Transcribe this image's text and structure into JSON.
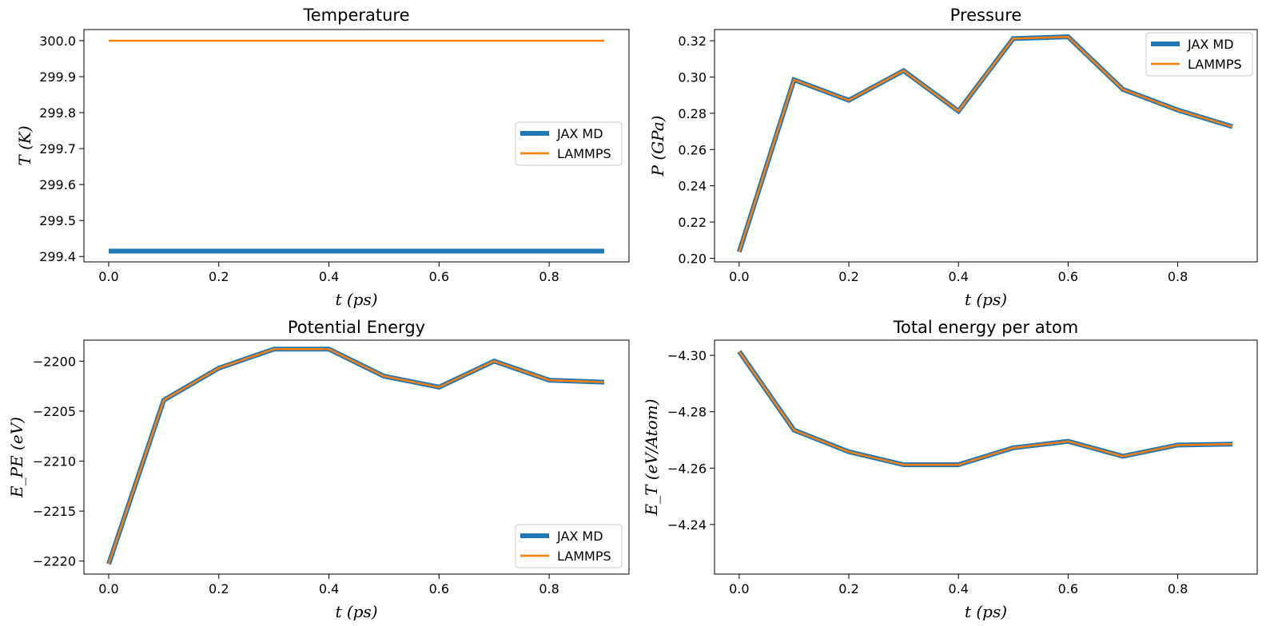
{
  "colors": {
    "jax": "#1f77b4",
    "lammps": "#ff7f0e",
    "legend_border": "#cccccc"
  },
  "chart_data": [
    {
      "type": "line",
      "title": "Temperature",
      "xlabel": "t (ps)",
      "ylabel": "T (K)",
      "x": [
        0.0,
        0.1,
        0.2,
        0.3,
        0.4,
        0.5,
        0.6,
        0.7,
        0.8,
        0.9
      ],
      "xlim": [
        -0.045,
        0.945
      ],
      "ylim": [
        299.385,
        300.031
      ],
      "xticks": [
        0.0,
        0.2,
        0.4,
        0.6,
        0.8
      ],
      "xtick_labels": [
        "0.0",
        "0.2",
        "0.4",
        "0.6",
        "0.8"
      ],
      "yticks": [
        299.4,
        299.5,
        299.6,
        299.7,
        299.8,
        299.9,
        300.0
      ],
      "ytick_labels": [
        "299.4",
        "299.5",
        "299.6",
        "299.7",
        "299.8",
        "299.9",
        "300.0"
      ],
      "legend_position": "center-right",
      "series": [
        {
          "name": "JAX MD",
          "values": [
            299.415,
            299.415,
            299.415,
            299.415,
            299.415,
            299.415,
            299.415,
            299.415,
            299.415,
            299.415
          ]
        },
        {
          "name": "LAMMPS",
          "values": [
            300.0,
            300.0,
            300.0,
            300.0,
            300.0,
            300.0,
            300.0,
            300.0,
            300.0,
            300.0
          ]
        }
      ]
    },
    {
      "type": "line",
      "title": "Pressure",
      "xlabel": "t (ps)",
      "ylabel": "P (GPa)",
      "x": [
        0.0,
        0.1,
        0.2,
        0.3,
        0.4,
        0.5,
        0.6,
        0.7,
        0.8,
        0.9
      ],
      "xlim": [
        -0.045,
        0.945
      ],
      "ylim": [
        0.198,
        0.3262
      ],
      "xticks": [
        0.0,
        0.2,
        0.4,
        0.6,
        0.8
      ],
      "xtick_labels": [
        "0.0",
        "0.2",
        "0.4",
        "0.6",
        "0.8"
      ],
      "yticks": [
        0.2,
        0.22,
        0.24,
        0.26,
        0.28,
        0.3,
        0.32
      ],
      "ytick_labels": [
        "0.20",
        "0.22",
        "0.24",
        "0.26",
        "0.28",
        "0.30",
        "0.32"
      ],
      "legend_position": "upper-right",
      "series": [
        {
          "name": "JAX MD",
          "values": [
            0.2035,
            0.2985,
            0.2872,
            0.3035,
            0.2812,
            0.3212,
            0.3222,
            0.2932,
            0.2818,
            0.2726
          ]
        },
        {
          "name": "LAMMPS",
          "values": [
            0.2035,
            0.2985,
            0.2872,
            0.3035,
            0.2812,
            0.3212,
            0.3222,
            0.2932,
            0.2818,
            0.2726
          ]
        }
      ]
    },
    {
      "type": "line",
      "title": "Potential Energy",
      "xlabel": "t (ps)",
      "ylabel": "E_PE (eV)",
      "x": [
        0.0,
        0.1,
        0.2,
        0.3,
        0.4,
        0.5,
        0.6,
        0.7,
        0.8,
        0.9
      ],
      "xlim": [
        -0.045,
        0.945
      ],
      "ylim": [
        -2221.3,
        -2197.9
      ],
      "xticks": [
        0.0,
        0.2,
        0.4,
        0.6,
        0.8
      ],
      "xtick_labels": [
        "0.0",
        "0.2",
        "0.4",
        "0.6",
        "0.8"
      ],
      "yticks": [
        -2220,
        -2215,
        -2210,
        -2205,
        -2200
      ],
      "ytick_labels": [
        "−2220",
        "−2215",
        "−2210",
        "−2205",
        "−2200"
      ],
      "legend_position": "lower-right",
      "series": [
        {
          "name": "JAX MD",
          "values": [
            -2220.3,
            -2203.9,
            -2200.7,
            -2198.8,
            -2198.8,
            -2201.5,
            -2202.6,
            -2200.0,
            -2201.9,
            -2202.1
          ]
        },
        {
          "name": "LAMMPS",
          "values": [
            -2220.3,
            -2203.9,
            -2200.7,
            -2198.8,
            -2198.8,
            -2201.5,
            -2202.6,
            -2200.0,
            -2201.9,
            -2202.1
          ]
        }
      ]
    },
    {
      "type": "line",
      "title": "Total energy per atom",
      "xlabel": "t (ps)",
      "ylabel": "E_T (eV/Atom)",
      "x": [
        0.0,
        0.1,
        0.2,
        0.3,
        0.4,
        0.5,
        0.6,
        0.7,
        0.8,
        0.9
      ],
      "xlim": [
        -0.045,
        0.945
      ],
      "ylim": [
        -4.2224,
        -4.3054
      ],
      "xticks": [
        0.0,
        0.2,
        0.4,
        0.6,
        0.8
      ],
      "xtick_labels": [
        "0.0",
        "0.2",
        "0.4",
        "0.6",
        "0.8"
      ],
      "yticks": [
        -4.24,
        -4.26,
        -4.28,
        -4.3
      ],
      "ytick_labels": [
        "−4.24",
        "−4.26",
        "−4.28",
        "−4.30"
      ],
      "legend_position": "upper-right",
      "series": [
        {
          "name": "JAX MD",
          "values": [
            -4.3014,
            -4.2735,
            -4.2658,
            -4.2612,
            -4.2612,
            -4.2672,
            -4.2695,
            -4.2642,
            -4.2682,
            -4.2685
          ]
        },
        {
          "name": "LAMMPS",
          "values": [
            -4.3014,
            -4.2735,
            -4.2658,
            -4.2612,
            -4.2612,
            -4.2672,
            -4.2695,
            -4.2642,
            -4.2682,
            -4.2685
          ]
        }
      ]
    }
  ]
}
